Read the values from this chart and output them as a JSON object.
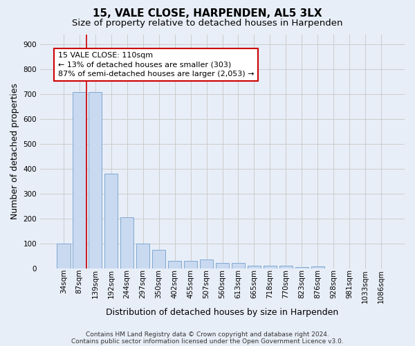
{
  "title": "15, VALE CLOSE, HARPENDEN, AL5 3LX",
  "subtitle": "Size of property relative to detached houses in Harpenden",
  "xlabel": "Distribution of detached houses by size in Harpenden",
  "ylabel": "Number of detached properties",
  "categories": [
    "34sqm",
    "87sqm",
    "139sqm",
    "192sqm",
    "244sqm",
    "297sqm",
    "350sqm",
    "402sqm",
    "455sqm",
    "507sqm",
    "560sqm",
    "613sqm",
    "665sqm",
    "718sqm",
    "770sqm",
    "823sqm",
    "876sqm",
    "928sqm",
    "981sqm",
    "1033sqm",
    "1086sqm"
  ],
  "values": [
    100,
    710,
    710,
    380,
    205,
    100,
    73,
    30,
    30,
    35,
    20,
    20,
    10,
    10,
    10,
    5,
    8,
    0,
    0,
    0,
    0
  ],
  "bar_color": "#c9d9f0",
  "bar_edge_color": "#7fa8d1",
  "grid_color": "#cccccc",
  "background_color": "#e8eef7",
  "annotation_line1": "15 VALE CLOSE: 110sqm",
  "annotation_line2": "← 13% of detached houses are smaller (303)",
  "annotation_line3": "87% of semi-detached houses are larger (2,053) →",
  "annotation_box_color": "#ffffff",
  "annotation_box_edge_color": "#cc0000",
  "vline_color": "#cc0000",
  "vline_x": 1.43,
  "ylim": [
    0,
    940
  ],
  "yticks": [
    0,
    100,
    200,
    300,
    400,
    500,
    600,
    700,
    800,
    900
  ],
  "footer_line1": "Contains HM Land Registry data © Crown copyright and database right 2024.",
  "footer_line2": "Contains public sector information licensed under the Open Government Licence v3.0.",
  "title_fontsize": 11,
  "subtitle_fontsize": 9.5,
  "xlabel_fontsize": 9,
  "ylabel_fontsize": 9,
  "tick_fontsize": 7.5,
  "annotation_fontsize": 8,
  "footer_fontsize": 6.5
}
